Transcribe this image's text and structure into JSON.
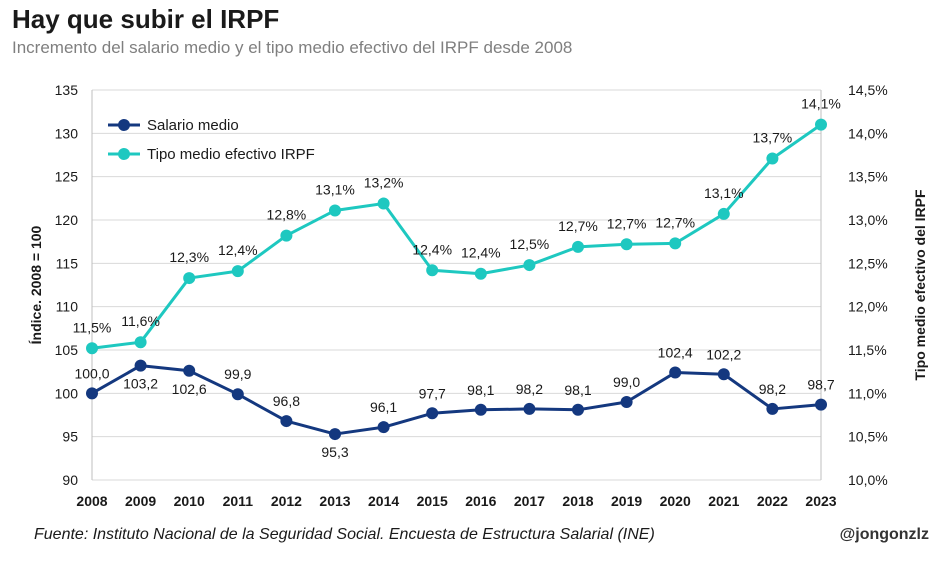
{
  "header": {
    "title": "Hay que subir el IRPF",
    "subtitle": "Incremento del salario medio y el tipo medio efectivo del IRPF desde 2008"
  },
  "footer": {
    "source": "Fuente: Instituto Nacional de la Seguridad Social. Encuesta de Estructura Salarial (INE)",
    "credit": "@jongonzlz"
  },
  "chart_data": {
    "type": "line",
    "title": "Hay que subir el IRPF",
    "subtitle": "Incremento del salario medio y el tipo medio efectivo del IRPF desde 2008",
    "x": [
      "2008",
      "2009",
      "2010",
      "2011",
      "2012",
      "2013",
      "2014",
      "2015",
      "2016",
      "2017",
      "2018",
      "2019",
      "2020",
      "2021",
      "2022",
      "2023"
    ],
    "xlabel": "",
    "ylabel_left": "Índice. 2008 = 100",
    "ylabel_right": "Tipo medio efectivo del IRPF",
    "ylim_left": [
      90,
      135
    ],
    "ylim_right": [
      10.0,
      14.5
    ],
    "yticks_left": [
      "90",
      "95",
      "100",
      "105",
      "110",
      "115",
      "120",
      "125",
      "130",
      "135"
    ],
    "yticks_right": [
      "10,0%",
      "10,5%",
      "11,0%",
      "11,5%",
      "12,0%",
      "12,5%",
      "13,0%",
      "13,5%",
      "14,0%",
      "14,5%"
    ],
    "legend_position": "top-left",
    "series": [
      {
        "name": "Salario medio",
        "axis": "left",
        "color": "#14387f",
        "values": [
          100.0,
          103.2,
          102.6,
          99.9,
          96.8,
          95.3,
          96.1,
          97.7,
          98.1,
          98.2,
          98.1,
          99.0,
          102.4,
          102.2,
          98.2,
          98.7
        ],
        "labels": [
          "100,0",
          "103,2",
          "102,6",
          "99,9",
          "96,8",
          "95,3",
          "96,1",
          "97,7",
          "98,1",
          "98,2",
          "98,1",
          "99,0",
          "102,4",
          "102,2",
          "98,2",
          "98,7"
        ]
      },
      {
        "name": "Tipo medio efectivo IRPF",
        "axis": "right",
        "color": "#1ec8c0",
        "values": [
          11.52,
          11.59,
          12.33,
          12.41,
          12.82,
          13.11,
          13.19,
          12.42,
          12.38,
          12.48,
          12.69,
          12.72,
          12.73,
          13.07,
          13.71,
          14.1
        ],
        "labels": [
          "11,5%",
          "11,6%",
          "12,3%",
          "12,4%",
          "12,8%",
          "13,1%",
          "13,2%",
          "12,4%",
          "12,4%",
          "12,5%",
          "12,7%",
          "12,7%",
          "12,7%",
          "13,1%",
          "13,7%",
          "14,1%"
        ]
      }
    ]
  }
}
